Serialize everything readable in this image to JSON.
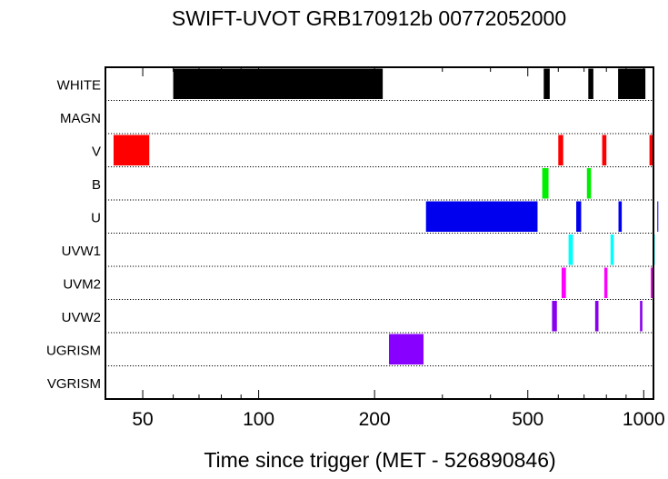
{
  "chart_data": {
    "type": "bar",
    "subtype": "timeline",
    "title": "SWIFT-UVOT GRB170912b 00772052000",
    "xlabel": "Time since trigger (MET - 526890846)",
    "x_scale": "log",
    "xlim": [
      40,
      1060
    ],
    "x_ticks_major": [
      50,
      100,
      200,
      500,
      1000
    ],
    "x_tick_labels": [
      "50",
      "100",
      "200",
      "500",
      "1000"
    ],
    "rows": [
      "WHITE",
      "MAGN",
      "V",
      "B",
      "U",
      "UVW1",
      "UVM2",
      "UVW2",
      "UGRISM",
      "VGRISM"
    ],
    "colors": {
      "WHITE": "#000000",
      "V": "#ff0000",
      "B": "#00ee00",
      "U": "#0000ee",
      "UVW1": "#00ffff",
      "UVM2": "#ff00ff",
      "UVW2": "#8800ee",
      "UGRISM": "#8800ff"
    },
    "series": [
      {
        "name": "WHITE",
        "intervals": [
          [
            60,
            210
          ],
          [
            550,
            570
          ],
          [
            718,
            740
          ],
          [
            858,
            1010
          ]
        ]
      },
      {
        "name": "MAGN",
        "intervals": []
      },
      {
        "name": "V",
        "intervals": [
          [
            42,
            52
          ],
          [
            600,
            618
          ],
          [
            780,
            800
          ],
          [
            1035,
            1055
          ]
        ]
      },
      {
        "name": "B",
        "intervals": [
          [
            545,
            566
          ],
          [
            712,
            730
          ]
        ]
      },
      {
        "name": "U",
        "intervals": [
          [
            272,
            530
          ],
          [
            668,
            688
          ],
          [
            860,
            877
          ],
          [
            1085,
            1105
          ]
        ]
      },
      {
        "name": "UVW1",
        "intervals": [
          [
            638,
            655
          ],
          [
            820,
            836
          ],
          [
            1063,
            1083
          ]
        ]
      },
      {
        "name": "UVM2",
        "intervals": [
          [
            612,
            628
          ],
          [
            790,
            805
          ],
          [
            1043,
            1060
          ]
        ]
      },
      {
        "name": "UVW2",
        "intervals": [
          [
            578,
            595
          ],
          [
            748,
            763
          ],
          [
            978,
            992
          ]
        ]
      },
      {
        "name": "UGRISM",
        "intervals": [
          [
            218,
            268
          ]
        ]
      },
      {
        "name": "VGRISM",
        "intervals": []
      }
    ]
  }
}
